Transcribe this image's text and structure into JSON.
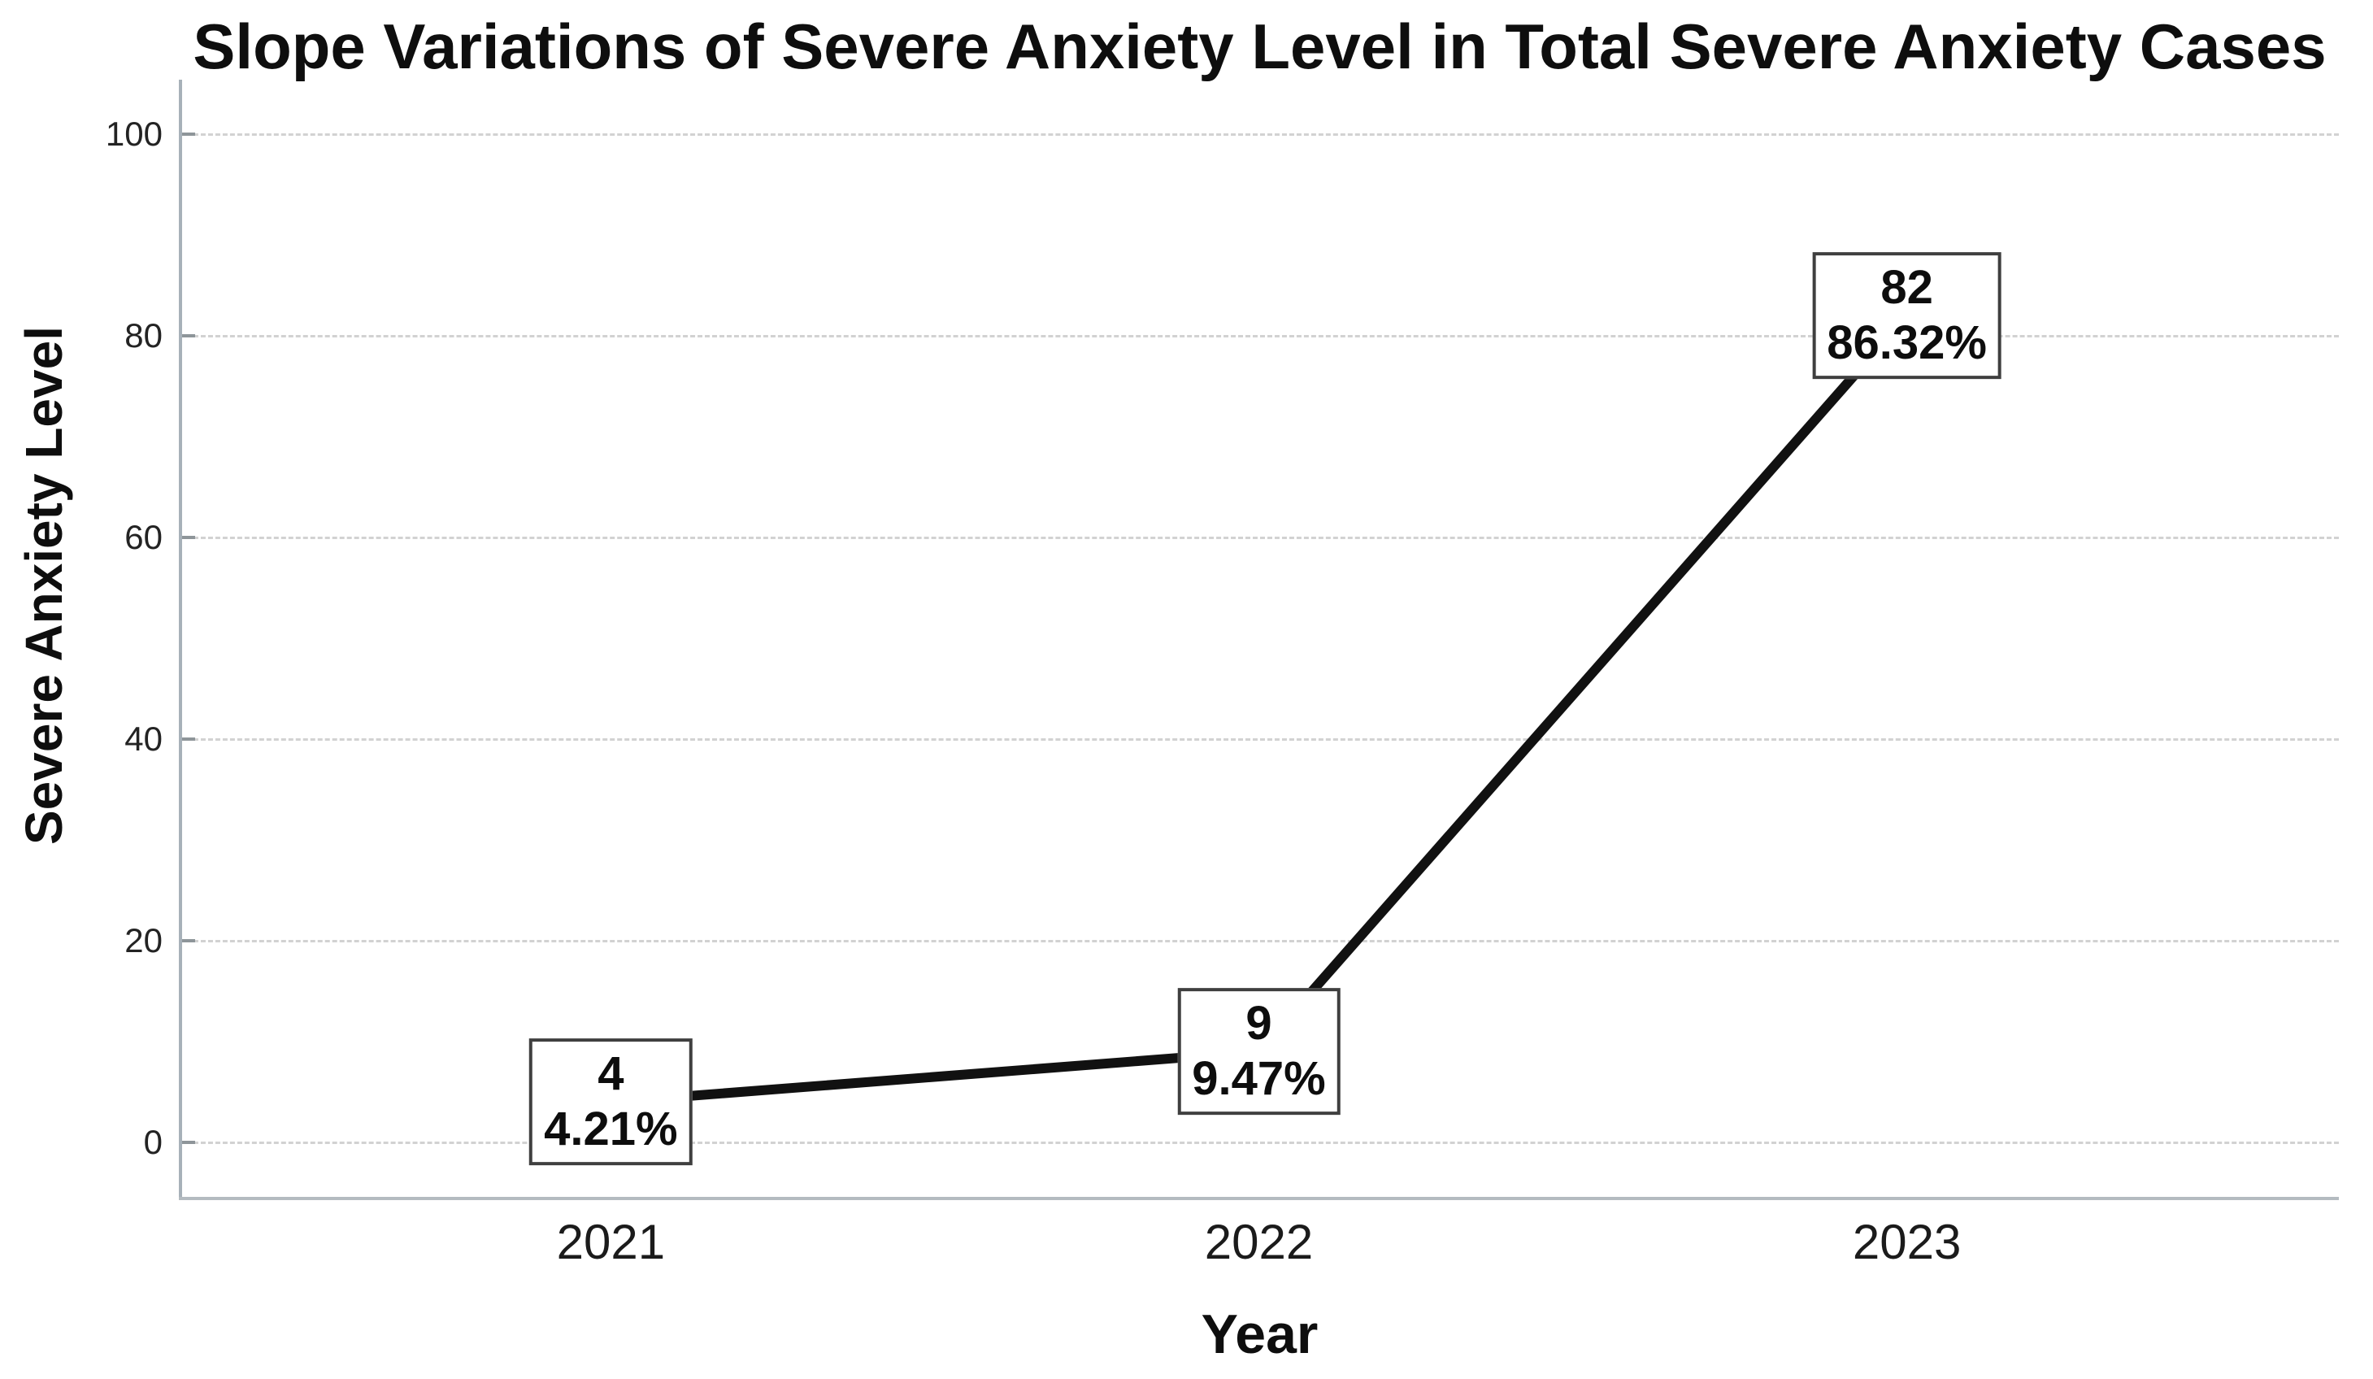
{
  "chart_data": {
    "type": "line",
    "title": "Slope Variations of Severe Anxiety Level in Total Severe Anxiety Cases",
    "xlabel": "Year",
    "ylabel": "Severe Anxiety Level",
    "categories": [
      "2021",
      "2022",
      "2023"
    ],
    "values": [
      4,
      9,
      82
    ],
    "point_labels": [
      {
        "value": "4",
        "percent": "4.21%"
      },
      {
        "value": "9",
        "percent": "9.47%"
      },
      {
        "value": "82",
        "percent": "86.32%"
      }
    ],
    "yticks": [
      "0",
      "20",
      "40",
      "60",
      "80",
      "100"
    ],
    "ylim": [
      0,
      100
    ],
    "grid": true,
    "legend": "none",
    "line_color": "#111111",
    "gridline_color": "#d2d2d2",
    "axis_color": "#a7b1b9",
    "label_box_border_color": "#3f3f3f",
    "label_box_fill": "#ffffff"
  }
}
